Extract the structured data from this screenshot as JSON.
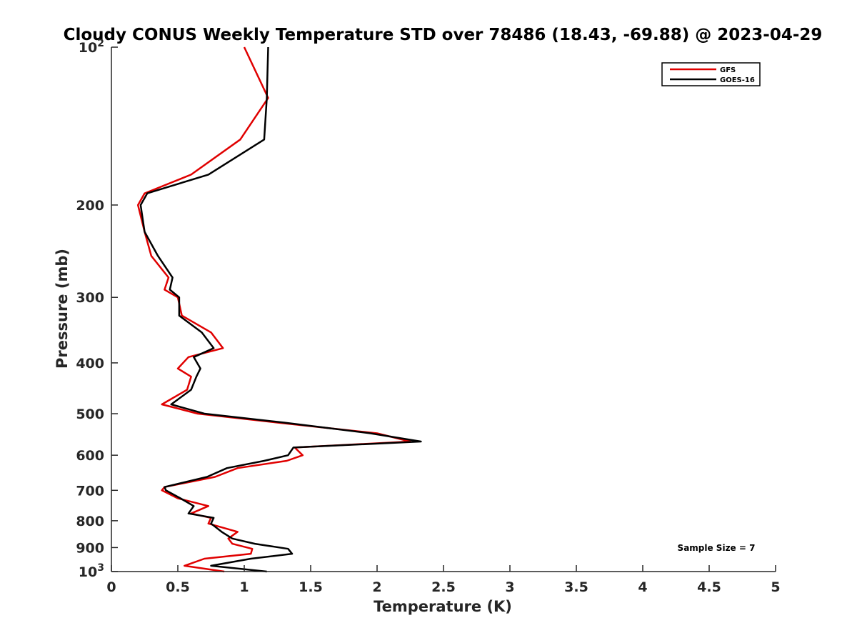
{
  "chart_data": {
    "type": "line",
    "title": "Cloudy CONUS Weekly Temperature STD over 78486 (18.43, -69.88) @ 2023-04-29",
    "xlabel": "Temperature (K)",
    "ylabel": "Pressure (mb)",
    "xlim": [
      0,
      5
    ],
    "ylim": [
      100,
      1000
    ],
    "y_scale": "log",
    "y_reversed": true,
    "x_ticks": [
      0,
      0.5,
      1,
      1.5,
      2,
      2.5,
      3,
      3.5,
      4,
      4.5,
      5
    ],
    "x_tick_labels": [
      "0",
      "0.5",
      "1",
      "1.5",
      "2",
      "2.5",
      "3",
      "3.5",
      "4",
      "4.5",
      "5"
    ],
    "y_ticks": [
      {
        "value": 100,
        "base": "10",
        "exp": "2"
      },
      {
        "value": 200,
        "label": "200"
      },
      {
        "value": 300,
        "label": "300"
      },
      {
        "value": 400,
        "label": "400"
      },
      {
        "value": 500,
        "label": "500"
      },
      {
        "value": 600,
        "label": "600"
      },
      {
        "value": 700,
        "label": "700"
      },
      {
        "value": 800,
        "label": "800"
      },
      {
        "value": 900,
        "label": "900"
      },
      {
        "value": 1000,
        "base": "10",
        "exp": "3"
      }
    ],
    "legend": {
      "position": "top-right"
    },
    "annotation": "Sample Size = 7",
    "grid": false,
    "series": [
      {
        "name": "GFS",
        "color": "#e00000",
        "points": [
          [
            1.0,
            100
          ],
          [
            1.18,
            125
          ],
          [
            0.97,
            150
          ],
          [
            0.6,
            175
          ],
          [
            0.25,
            190
          ],
          [
            0.2,
            200
          ],
          [
            0.25,
            225
          ],
          [
            0.3,
            250
          ],
          [
            0.43,
            275
          ],
          [
            0.4,
            290
          ],
          [
            0.5,
            300
          ],
          [
            0.53,
            325
          ],
          [
            0.75,
            350
          ],
          [
            0.84,
            375
          ],
          [
            0.58,
            390
          ],
          [
            0.5,
            410
          ],
          [
            0.6,
            425
          ],
          [
            0.57,
            450
          ],
          [
            0.38,
            480
          ],
          [
            0.65,
            500
          ],
          [
            1.25,
            520
          ],
          [
            2.0,
            545
          ],
          [
            2.25,
            565
          ],
          [
            1.38,
            580
          ],
          [
            1.44,
            600
          ],
          [
            1.32,
            615
          ],
          [
            0.95,
            635
          ],
          [
            0.78,
            660
          ],
          [
            0.4,
            690
          ],
          [
            0.38,
            700
          ],
          [
            0.5,
            725
          ],
          [
            0.73,
            750
          ],
          [
            0.6,
            775
          ],
          [
            0.75,
            790
          ],
          [
            0.73,
            810
          ],
          [
            0.95,
            840
          ],
          [
            0.88,
            865
          ],
          [
            0.91,
            885
          ],
          [
            1.06,
            905
          ],
          [
            1.05,
            925
          ],
          [
            0.7,
            945
          ],
          [
            0.55,
            975
          ],
          [
            0.85,
            1000
          ]
        ]
      },
      {
        "name": "GOES-16",
        "color": "#000000",
        "points": [
          [
            1.18,
            100
          ],
          [
            1.17,
            125
          ],
          [
            1.15,
            150
          ],
          [
            0.73,
            175
          ],
          [
            0.27,
            190
          ],
          [
            0.22,
            200
          ],
          [
            0.25,
            225
          ],
          [
            0.35,
            250
          ],
          [
            0.46,
            275
          ],
          [
            0.44,
            290
          ],
          [
            0.51,
            300
          ],
          [
            0.51,
            325
          ],
          [
            0.68,
            350
          ],
          [
            0.77,
            375
          ],
          [
            0.62,
            390
          ],
          [
            0.67,
            410
          ],
          [
            0.64,
            425
          ],
          [
            0.6,
            450
          ],
          [
            0.45,
            480
          ],
          [
            0.7,
            500
          ],
          [
            1.3,
            520
          ],
          [
            1.95,
            545
          ],
          [
            2.33,
            565
          ],
          [
            1.37,
            580
          ],
          [
            1.33,
            600
          ],
          [
            1.15,
            615
          ],
          [
            0.87,
            635
          ],
          [
            0.72,
            660
          ],
          [
            0.4,
            690
          ],
          [
            0.41,
            700
          ],
          [
            0.52,
            725
          ],
          [
            0.62,
            750
          ],
          [
            0.58,
            775
          ],
          [
            0.77,
            790
          ],
          [
            0.75,
            810
          ],
          [
            0.83,
            840
          ],
          [
            0.91,
            865
          ],
          [
            1.08,
            885
          ],
          [
            1.33,
            905
          ],
          [
            1.36,
            925
          ],
          [
            1.05,
            945
          ],
          [
            0.75,
            975
          ],
          [
            1.17,
            1000
          ]
        ]
      }
    ]
  }
}
